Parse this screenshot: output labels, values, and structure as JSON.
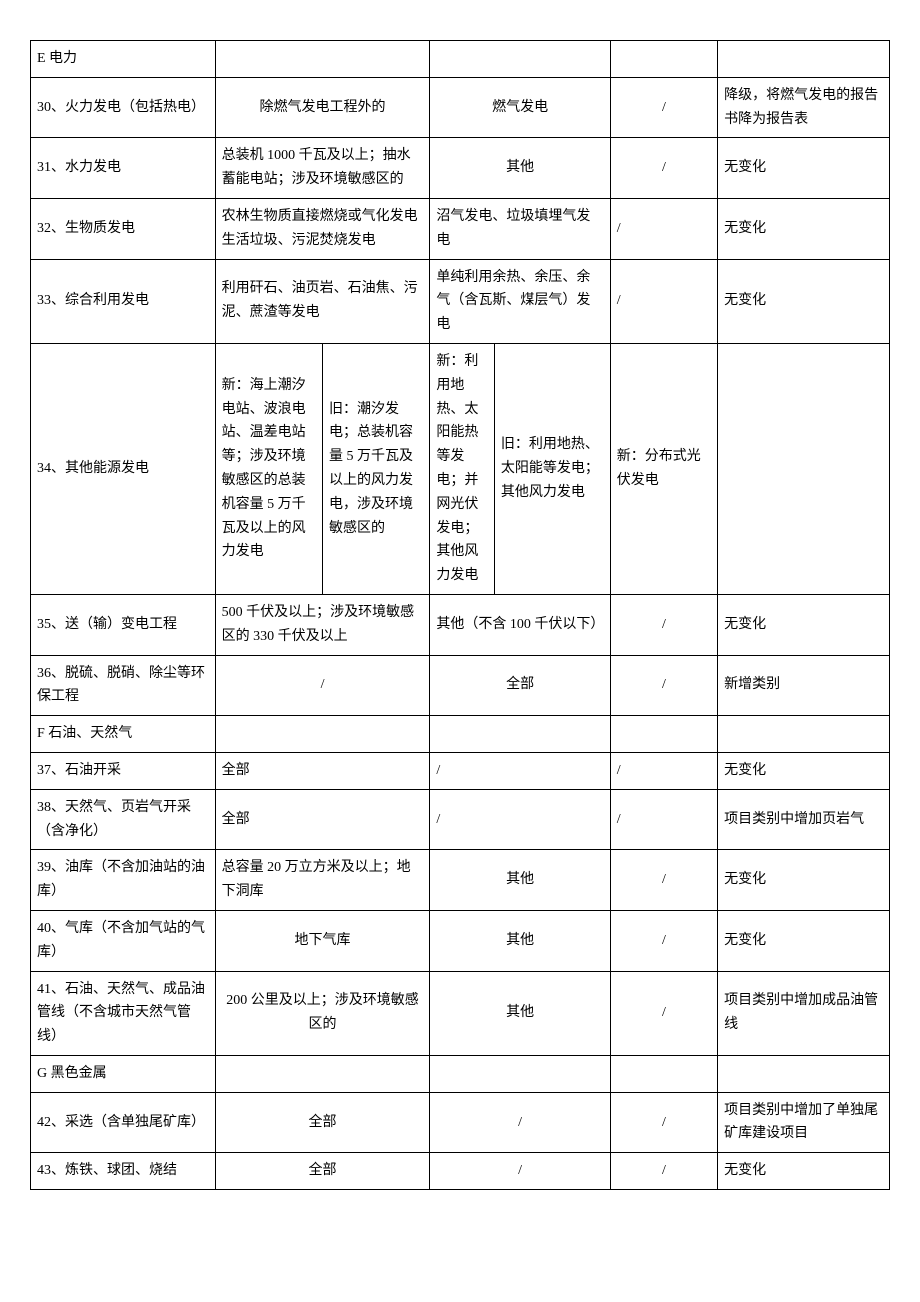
{
  "col_widths": [
    "21.5%",
    "12.5%",
    "12.5%",
    "7.5%",
    "7.5%",
    "6%",
    "12.5%",
    "20%"
  ],
  "rows": [
    {
      "cells": [
        {
          "text": "E 电力",
          "colspan": 1,
          "align": "left"
        },
        {
          "text": "",
          "colspan": 2
        },
        {
          "text": "",
          "colspan": 3
        },
        {
          "text": "",
          "colspan": 1
        },
        {
          "text": "",
          "colspan": 1
        }
      ]
    },
    {
      "cells": [
        {
          "text": "30、火力发电（包括热电）",
          "colspan": 1,
          "align": "left"
        },
        {
          "text": "除燃气发电工程外的",
          "colspan": 2,
          "align": "center"
        },
        {
          "text": "燃气发电",
          "colspan": 3,
          "align": "center"
        },
        {
          "text": "/",
          "colspan": 1,
          "align": "center"
        },
        {
          "text": "降级，将燃气发电的报告书降为报告表",
          "colspan": 1,
          "align": "left"
        }
      ]
    },
    {
      "cells": [
        {
          "text": "31、水力发电",
          "colspan": 1,
          "align": "left"
        },
        {
          "text": "总装机 1000 千瓦及以上；抽水蓄能电站；涉及环境敏感区的",
          "colspan": 2,
          "align": "left"
        },
        {
          "text": "其他",
          "colspan": 3,
          "align": "center"
        },
        {
          "text": "/",
          "colspan": 1,
          "align": "center"
        },
        {
          "text": "无变化",
          "colspan": 1,
          "align": "left"
        }
      ]
    },
    {
      "cells": [
        {
          "text": "32、生物质发电",
          "colspan": 1,
          "align": "left"
        },
        {
          "text": "农林生物质直接燃烧或气化发电生活垃圾、污泥焚烧发电",
          "colspan": 2,
          "align": "left"
        },
        {
          "text": "沼气发电、垃圾填埋气发电",
          "colspan": 3,
          "align": "left"
        },
        {
          "text": "/",
          "colspan": 1,
          "align": "left"
        },
        {
          "text": "无变化",
          "colspan": 1,
          "align": "left"
        }
      ]
    },
    {
      "cells": [
        {
          "text": "33、综合利用发电",
          "colspan": 1,
          "align": "left"
        },
        {
          "text": "利用矸石、油页岩、石油焦、污泥、蔗渣等发电",
          "colspan": 2,
          "align": "left"
        },
        {
          "text": "单纯利用余热、余压、余气（含瓦斯、煤层气）发电",
          "colspan": 3,
          "align": "left"
        },
        {
          "text": "/",
          "colspan": 1,
          "align": "left"
        },
        {
          "text": "无变化",
          "colspan": 1,
          "align": "left"
        }
      ]
    },
    {
      "cells": [
        {
          "text": "34、其他能源发电",
          "colspan": 1,
          "align": "left"
        },
        {
          "text": "新：海上潮汐电站、波浪电站、温差电站等；涉及环境敏感区的总装机容量 5 万千瓦及以上的风力发电",
          "colspan": 1,
          "align": "left"
        },
        {
          "text": "旧：潮汐发电；总装机容量 5 万千瓦及以上的风力发电，涉及环境敏感区的",
          "colspan": 1,
          "align": "left"
        },
        {
          "text": "新：利用地热、太阳能热等发电；并网光伏发电；其他风力发电",
          "colspan": 1,
          "align": "left"
        },
        {
          "text": "旧：利用地热、太阳能等发电；其他风力发电",
          "colspan": 2,
          "align": "left"
        },
        {
          "text": "新：分布式光伏发电",
          "colspan": 1,
          "align": "left"
        },
        {
          "text": "",
          "colspan": 1
        }
      ]
    },
    {
      "cells": [
        {
          "text": "35、送（输）变电工程",
          "colspan": 1,
          "align": "left"
        },
        {
          "text": "500 千伏及以上；涉及环境敏感区的 330 千伏及以上",
          "colspan": 2,
          "align": "left"
        },
        {
          "text": "其他（不含 100 千伏以下）",
          "colspan": 3,
          "align": "left"
        },
        {
          "text": "/",
          "colspan": 1,
          "align": "center"
        },
        {
          "text": "无变化",
          "colspan": 1,
          "align": "left"
        }
      ]
    },
    {
      "cells": [
        {
          "text": "36、脱硫、脱硝、除尘等环保工程",
          "colspan": 1,
          "align": "left"
        },
        {
          "text": "/",
          "colspan": 2,
          "align": "center"
        },
        {
          "text": "全部",
          "colspan": 3,
          "align": "center"
        },
        {
          "text": "/",
          "colspan": 1,
          "align": "center"
        },
        {
          "text": "新增类别",
          "colspan": 1,
          "align": "left"
        }
      ]
    },
    {
      "cells": [
        {
          "text": "F 石油、天然气",
          "colspan": 1,
          "align": "left"
        },
        {
          "text": "",
          "colspan": 2
        },
        {
          "text": "",
          "colspan": 3
        },
        {
          "text": "",
          "colspan": 1
        },
        {
          "text": "",
          "colspan": 1
        }
      ]
    },
    {
      "cells": [
        {
          "text": "37、石油开采",
          "colspan": 1,
          "align": "left"
        },
        {
          "text": "全部",
          "colspan": 2,
          "align": "left"
        },
        {
          "text": "/",
          "colspan": 3,
          "align": "left"
        },
        {
          "text": "/",
          "colspan": 1,
          "align": "left"
        },
        {
          "text": "无变化",
          "colspan": 1,
          "align": "left"
        }
      ]
    },
    {
      "cells": [
        {
          "text": "38、天然气、页岩气开采（含净化）",
          "colspan": 1,
          "align": "left"
        },
        {
          "text": "全部",
          "colspan": 2,
          "align": "left"
        },
        {
          "text": "/",
          "colspan": 3,
          "align": "left"
        },
        {
          "text": "/",
          "colspan": 1,
          "align": "left"
        },
        {
          "text": "项目类别中增加页岩气",
          "colspan": 1,
          "align": "left"
        }
      ]
    },
    {
      "cells": [
        {
          "text": "39、油库（不含加油站的油库）",
          "colspan": 1,
          "align": "left"
        },
        {
          "text": "总容量 20 万立方米及以上；地下洞库",
          "colspan": 2,
          "align": "left"
        },
        {
          "text": "其他",
          "colspan": 3,
          "align": "center"
        },
        {
          "text": "/",
          "colspan": 1,
          "align": "center"
        },
        {
          "text": "无变化",
          "colspan": 1,
          "align": "left"
        }
      ]
    },
    {
      "cells": [
        {
          "text": "40、气库（不含加气站的气库）",
          "colspan": 1,
          "align": "left"
        },
        {
          "text": "地下气库",
          "colspan": 2,
          "align": "center"
        },
        {
          "text": "其他",
          "colspan": 3,
          "align": "center"
        },
        {
          "text": "/",
          "colspan": 1,
          "align": "center"
        },
        {
          "text": "无变化",
          "colspan": 1,
          "align": "left"
        }
      ]
    },
    {
      "cells": [
        {
          "text": "41、石油、天然气、成品油管线（不含城市天然气管线）",
          "colspan": 1,
          "align": "left"
        },
        {
          "text": "200 公里及以上；涉及环境敏感区的",
          "colspan": 2,
          "align": "center"
        },
        {
          "text": "其他",
          "colspan": 3,
          "align": "center"
        },
        {
          "text": "/",
          "colspan": 1,
          "align": "center"
        },
        {
          "text": "项目类别中增加成品油管线",
          "colspan": 1,
          "align": "left"
        }
      ]
    },
    {
      "cells": [
        {
          "text": "G 黑色金属",
          "colspan": 1,
          "align": "left"
        },
        {
          "text": "",
          "colspan": 2
        },
        {
          "text": "",
          "colspan": 3
        },
        {
          "text": "",
          "colspan": 1
        },
        {
          "text": "",
          "colspan": 1
        }
      ]
    },
    {
      "cells": [
        {
          "text": "42、采选（含单独尾矿库）",
          "colspan": 1,
          "align": "left"
        },
        {
          "text": "全部",
          "colspan": 2,
          "align": "center"
        },
        {
          "text": "/",
          "colspan": 3,
          "align": "center"
        },
        {
          "text": "/",
          "colspan": 1,
          "align": "center"
        },
        {
          "text": "项目类别中增加了单独尾矿库建设项目",
          "colspan": 1,
          "align": "left"
        }
      ]
    },
    {
      "cells": [
        {
          "text": "43、炼铁、球团、烧结",
          "colspan": 1,
          "align": "left"
        },
        {
          "text": "全部",
          "colspan": 2,
          "align": "center"
        },
        {
          "text": "/",
          "colspan": 3,
          "align": "center"
        },
        {
          "text": "/",
          "colspan": 1,
          "align": "center"
        },
        {
          "text": "无变化",
          "colspan": 1,
          "align": "left"
        }
      ]
    }
  ]
}
